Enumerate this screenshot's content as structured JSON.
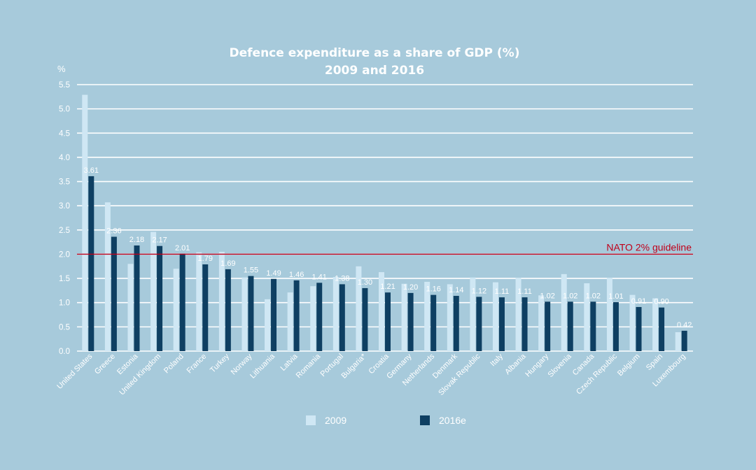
{
  "chart_data": {
    "type": "bar",
    "title": "Defence expenditure as a share of GDP (%)",
    "subtitle": "2009 and 2016",
    "ylabel": "%",
    "ylim": [
      0,
      5.5
    ],
    "yticks": [
      "0.0",
      "0.5",
      "1.0",
      "1.5",
      "2.0",
      "2.5",
      "3.0",
      "3.5",
      "4.0",
      "4.5",
      "5.0",
      "5.5"
    ],
    "grid": true,
    "categories": [
      "United States",
      "Greece",
      "Estonia",
      "United Kingdom",
      "Poland",
      "France",
      "Turkey",
      "Norway",
      "Lithuania",
      "Latvia",
      "Romania",
      "Portugal",
      "Bulgaria*",
      "Croatia",
      "Germany",
      "Netherlands",
      "Denmark",
      "Slovak Republic",
      "Italy",
      "Albania",
      "Hungary",
      "Slovenia",
      "Canada",
      "Czech Republic",
      "Belgium",
      "Spain",
      "Luxembourg"
    ],
    "series": [
      {
        "name": "2009",
        "color": "#cfe7f4",
        "values": [
          5.29,
          3.07,
          1.8,
          2.46,
          1.7,
          2.04,
          2.05,
          1.52,
          1.07,
          1.21,
          1.34,
          1.53,
          1.75,
          1.63,
          1.39,
          1.43,
          1.38,
          1.52,
          1.42,
          1.51,
          1.15,
          1.59,
          1.4,
          1.51,
          1.16,
          1.09,
          0.39
        ]
      },
      {
        "name": "2016e",
        "color": "#0e3f62",
        "values": [
          3.61,
          2.36,
          2.18,
          2.17,
          2.01,
          1.79,
          1.69,
          1.55,
          1.49,
          1.46,
          1.41,
          1.38,
          1.3,
          1.21,
          1.2,
          1.16,
          1.14,
          1.12,
          1.11,
          1.11,
          1.02,
          1.02,
          1.02,
          1.01,
          0.91,
          0.9,
          0.42
        ],
        "labels": [
          "3.61",
          "2.36",
          "2.18",
          "2.17",
          "2.01",
          "1.79",
          "1.69",
          "1.55",
          "1.49",
          "1.46",
          "1.41",
          "1.38",
          "1.30",
          "1.21",
          "1.20",
          "1.16",
          "1.14",
          "1.12",
          "1.11",
          "1.11",
          "1.02",
          "1.02",
          "1.02",
          "1.01",
          "0.91",
          "0.90",
          "0.42"
        ]
      }
    ],
    "reference_line": {
      "value": 2.0,
      "label": "NATO 2% guideline",
      "color": "#c0001a"
    },
    "legend": [
      {
        "label": "2009",
        "color": "#cfe7f4"
      },
      {
        "label": "2016e",
        "color": "#0e3f62"
      }
    ],
    "legend_position": "bottom"
  }
}
